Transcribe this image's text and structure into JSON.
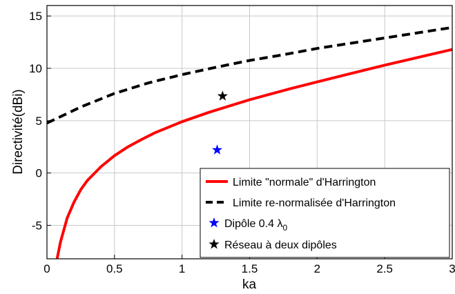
{
  "chart_data": {
    "type": "line",
    "title": "",
    "xlabel": "ka",
    "ylabel": "Directivité(dBi)",
    "xlim": [
      0,
      3
    ],
    "ylim": [
      -8.2,
      16
    ],
    "grid": true,
    "legend_position": "bottom-right",
    "x_ticks": [
      0,
      0.5,
      1,
      1.5,
      2,
      2.5,
      3
    ],
    "x_tick_labels": [
      "0",
      "0.5",
      "1",
      "1.5",
      "2",
      "2.5",
      "3"
    ],
    "y_ticks": [
      -5,
      0,
      5,
      10,
      15
    ],
    "y_tick_labels": [
      "-5",
      "0",
      "5",
      "10",
      "15"
    ],
    "series": [
      {
        "name": "Limite \"normale\" d'Harrington",
        "color": "#ff0000",
        "style": "solid",
        "x": [
          0.075,
          0.1,
          0.15,
          0.2,
          0.25,
          0.3,
          0.4,
          0.5,
          0.6,
          0.7,
          0.8,
          1.0,
          1.2,
          1.5,
          1.8,
          2.0,
          2.5,
          3.0
        ],
        "y": [
          -8.2,
          -6.6,
          -4.3,
          -2.8,
          -1.6,
          -0.7,
          0.6,
          1.65,
          2.5,
          3.2,
          3.85,
          4.9,
          5.8,
          7.0,
          8.05,
          8.7,
          10.3,
          11.8
        ]
      },
      {
        "name": "Limite re-normalisée d'Harrington",
        "color": "#000000",
        "style": "dashed",
        "x": [
          0,
          0.25,
          0.5,
          0.75,
          1.0,
          1.25,
          1.5,
          1.75,
          2.0,
          2.25,
          2.5,
          2.75,
          3.0
        ],
        "y": [
          4.77,
          6.3,
          7.6,
          8.6,
          9.4,
          10.1,
          10.75,
          11.3,
          11.9,
          12.4,
          12.9,
          13.4,
          13.9
        ]
      }
    ],
    "points": [
      {
        "name": "Dipôle 0.4 λ0",
        "marker": "star",
        "color": "#0000ff",
        "x": 1.26,
        "y": 2.2
      },
      {
        "name": "Réseau à deux dipôles",
        "marker": "star",
        "color": "#000000",
        "x": 1.3,
        "y": 7.35
      }
    ],
    "legend": [
      {
        "label": "Limite \"normale\" d'Harrington",
        "kind": "line",
        "color": "#ff0000",
        "style": "solid"
      },
      {
        "label": "Limite re-normalisée d'Harrington",
        "kind": "line",
        "color": "#000000",
        "style": "dashed"
      },
      {
        "label_main": "Dipôle 0.4 λ",
        "label_sub": "0",
        "kind": "star",
        "color": "#0000ff"
      },
      {
        "label": "Réseau à deux dipôles",
        "kind": "star",
        "color": "#000000"
      }
    ]
  }
}
